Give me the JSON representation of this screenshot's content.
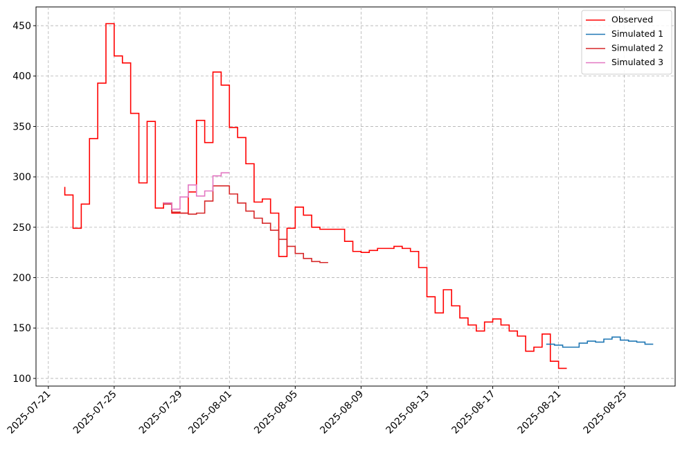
{
  "chart_data": {
    "type": "step",
    "step_where": "pre",
    "xlim": [
      "2025-07-20T06:00",
      "2025-08-28T02:00"
    ],
    "xticks": [
      "2025-07-21",
      "2025-07-25",
      "2025-07-29",
      "2025-08-01",
      "2025-08-05",
      "2025-08-09",
      "2025-08-13",
      "2025-08-17",
      "2025-08-21",
      "2025-08-25"
    ],
    "ylim": [
      92.4,
      468.6
    ],
    "yticks": [
      100,
      150,
      200,
      250,
      300,
      350,
      400,
      450
    ],
    "grid": true,
    "legend": "upper right",
    "series": [
      {
        "name": "Observed",
        "color": "#ff0000",
        "x": [
          "2025-07-22T00:00",
          "2025-07-22T12:00",
          "2025-07-23T00:00",
          "2025-07-23T12:00",
          "2025-07-24T00:00",
          "2025-07-24T12:00",
          "2025-07-25T00:00",
          "2025-07-25T12:00",
          "2025-07-26T00:00",
          "2025-07-26T12:00",
          "2025-07-27T00:00",
          "2025-07-27T12:00",
          "2025-07-28T00:00",
          "2025-07-28T12:00",
          "2025-07-29T00:00",
          "2025-07-29T12:00",
          "2025-07-30T00:00",
          "2025-07-30T12:00",
          "2025-07-31T00:00",
          "2025-07-31T12:00",
          "2025-08-01T00:00",
          "2025-08-01T12:00",
          "2025-08-02T00:00",
          "2025-08-02T12:00",
          "2025-08-03T00:00",
          "2025-08-03T12:00",
          "2025-08-04T00:00",
          "2025-08-04T12:00",
          "2025-08-05T00:00",
          "2025-08-05T12:00",
          "2025-08-06T00:00",
          "2025-08-06T12:00",
          "2025-08-07T00:00",
          "2025-08-07T12:00",
          "2025-08-08T00:00",
          "2025-08-08T12:00",
          "2025-08-09T00:00",
          "2025-08-09T12:00",
          "2025-08-10T00:00",
          "2025-08-10T12:00",
          "2025-08-11T00:00",
          "2025-08-11T12:00",
          "2025-08-12T00:00",
          "2025-08-12T12:00",
          "2025-08-13T00:00",
          "2025-08-13T12:00",
          "2025-08-14T00:00",
          "2025-08-14T12:00",
          "2025-08-15T00:00",
          "2025-08-15T12:00",
          "2025-08-16T00:00",
          "2025-08-16T12:00",
          "2025-08-17T00:00",
          "2025-08-17T12:00",
          "2025-08-18T00:00",
          "2025-08-18T12:00",
          "2025-08-19T00:00",
          "2025-08-19T12:00",
          "2025-08-20T00:00",
          "2025-08-20T12:00",
          "2025-08-21T00:00",
          "2025-08-21T12:00"
        ],
        "values": [
          290,
          282,
          249,
          273,
          338,
          393,
          452,
          420,
          413,
          363,
          294,
          355,
          269,
          274,
          264,
          264,
          285,
          356,
          334,
          404,
          391,
          349,
          339,
          313,
          275,
          278,
          264,
          221,
          249,
          270,
          262,
          250,
          248,
          248,
          248,
          236,
          226,
          225,
          227,
          229,
          229,
          231,
          229,
          226,
          210,
          181,
          165,
          188,
          172,
          160,
          153,
          147,
          156,
          159,
          153,
          147,
          142,
          127,
          131,
          144,
          117,
          110
        ]
      },
      {
        "name": "Simulated 1",
        "color": "#1f77b4",
        "x": [
          "2025-08-20T06:00",
          "2025-08-20T18:00",
          "2025-08-21T06:00",
          "2025-08-21T18:00",
          "2025-08-22T06:00",
          "2025-08-22T18:00",
          "2025-08-23T06:00",
          "2025-08-23T18:00",
          "2025-08-24T06:00",
          "2025-08-24T18:00",
          "2025-08-25T06:00",
          "2025-08-25T18:00",
          "2025-08-26T06:00",
          "2025-08-26T18:00"
        ],
        "values": [
          134,
          134,
          133,
          131,
          131,
          135,
          137,
          136,
          139,
          141,
          138,
          137,
          136,
          134
        ]
      },
      {
        "name": "Simulated 2",
        "color": "#d62728",
        "x": [
          "2025-07-28T00:00",
          "2025-07-28T12:00",
          "2025-07-29T00:00",
          "2025-07-29T12:00",
          "2025-07-30T00:00",
          "2025-07-30T12:00",
          "2025-07-31T00:00",
          "2025-07-31T12:00",
          "2025-08-01T00:00",
          "2025-08-01T12:00",
          "2025-08-02T00:00",
          "2025-08-02T12:00",
          "2025-08-03T00:00",
          "2025-08-03T12:00",
          "2025-08-04T00:00",
          "2025-08-04T12:00",
          "2025-08-05T00:00",
          "2025-08-05T12:00",
          "2025-08-06T00:00",
          "2025-08-06T12:00",
          "2025-08-07T00:00"
        ],
        "values": [
          273,
          273,
          265,
          264,
          263,
          264,
          276,
          291,
          291,
          283,
          274,
          266,
          259,
          254,
          247,
          238,
          231,
          224,
          219,
          216,
          215
        ]
      },
      {
        "name": "Simulated 3",
        "color": "#e377c2",
        "x": [
          "2025-07-28T00:00",
          "2025-07-28T12:00",
          "2025-07-29T00:00",
          "2025-07-29T12:00",
          "2025-07-30T00:00",
          "2025-07-30T12:00",
          "2025-07-31T00:00",
          "2025-07-31T12:00",
          "2025-08-01T00:00"
        ],
        "values": [
          274,
          274,
          268,
          280,
          292,
          281,
          286,
          301,
          304
        ]
      }
    ]
  }
}
